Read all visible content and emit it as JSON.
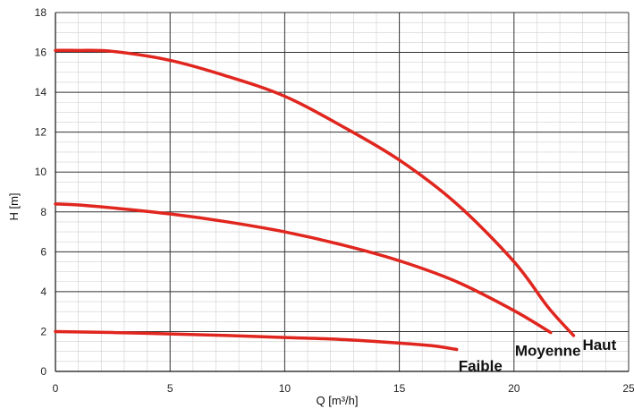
{
  "chart_data": {
    "type": "line",
    "title": "",
    "xlabel": "Q [m³/h]",
    "ylabel": "H [m]",
    "xlim": [
      0,
      25
    ],
    "ylim": [
      0,
      18
    ],
    "x_ticks": [
      "0",
      "5",
      "10",
      "15",
      "20",
      "25"
    ],
    "y_ticks": [
      "0",
      "2",
      "4",
      "6",
      "8",
      "10",
      "12",
      "14",
      "16",
      "18"
    ],
    "grid": true,
    "colors": {
      "series": "#e0261e",
      "major_grid": "#333333",
      "minor_grid": "#d0d0d0"
    },
    "series": [
      {
        "name": "Haut",
        "x": [
          0,
          1,
          2.5,
          5,
          7.5,
          10,
          12.5,
          15,
          17.5,
          20,
          21.5,
          22.6
        ],
        "y": [
          16.1,
          16.1,
          16.05,
          15.6,
          14.8,
          13.8,
          12.3,
          10.6,
          8.4,
          5.5,
          3.2,
          1.8
        ]
      },
      {
        "name": "Moyenne",
        "x": [
          0,
          1,
          2.5,
          5,
          7.5,
          10,
          12.5,
          15,
          17.5,
          20,
          21.6
        ],
        "y": [
          8.4,
          8.35,
          8.2,
          7.9,
          7.5,
          7.0,
          6.35,
          5.55,
          4.5,
          3.05,
          1.95
        ]
      },
      {
        "name": "Faible",
        "x": [
          0,
          2.5,
          5,
          7.5,
          10,
          12.5,
          15,
          16.5,
          17.5
        ],
        "y": [
          2.0,
          1.95,
          1.88,
          1.8,
          1.7,
          1.6,
          1.42,
          1.28,
          1.1
        ]
      }
    ]
  }
}
